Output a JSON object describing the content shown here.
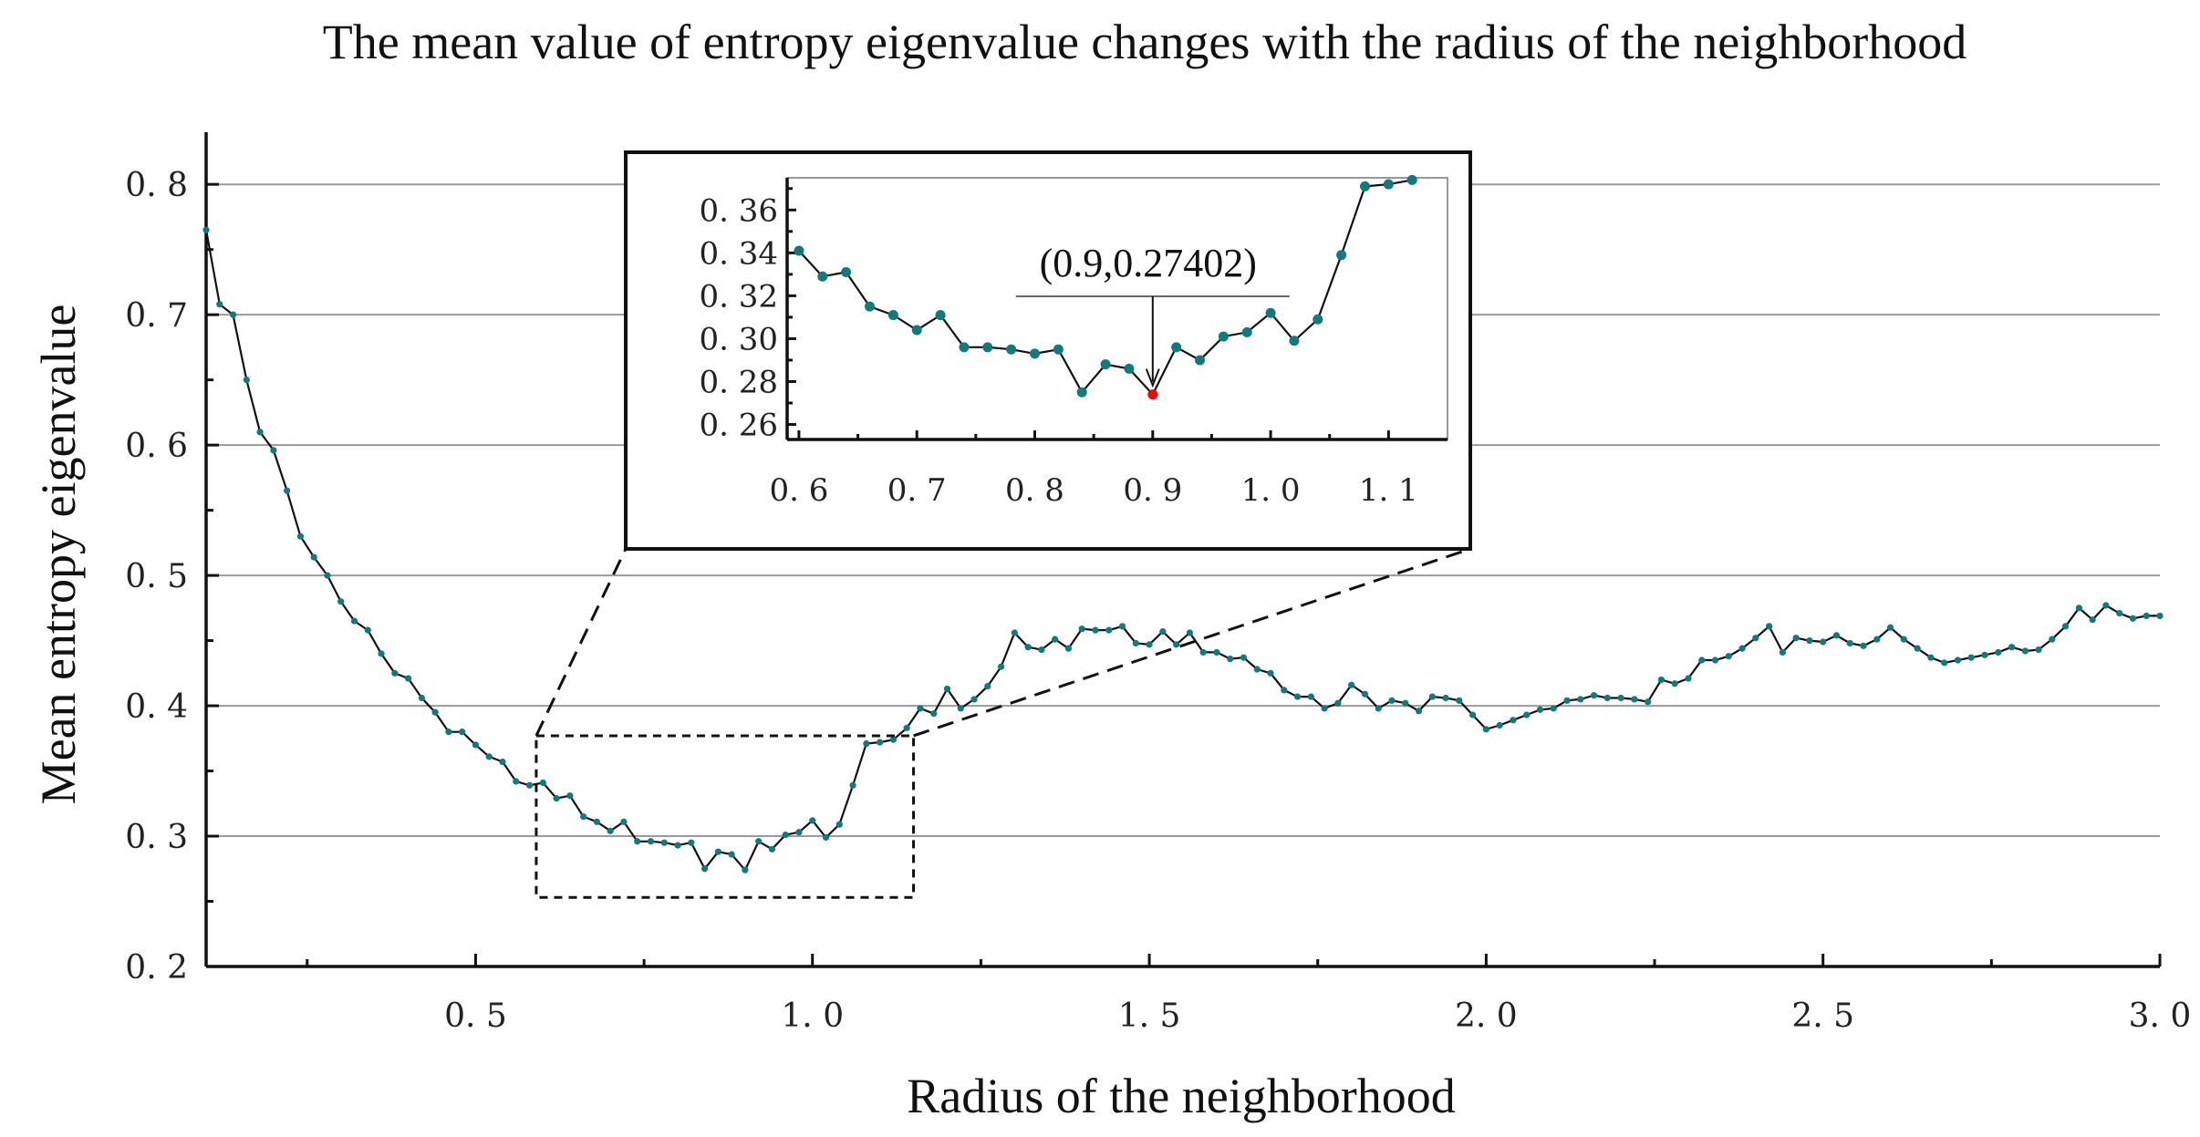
{
  "chart_data": {
    "type": "line",
    "title": "The mean value of entropy eigenvalue changes with the radius of the neighborhood",
    "xlabel": "Radius of the neighborhood",
    "ylabel": "Mean entropy eigenvalue",
    "xlim": [
      0.1,
      3.0
    ],
    "ylim": [
      0.2,
      0.84
    ],
    "xticks": [
      0.5,
      1.0,
      1.5,
      2.0,
      2.5,
      3.0
    ],
    "xtick_labels": [
      "0. 5",
      "1. 0",
      "1. 5",
      "2. 0",
      "2. 5",
      "3. 0"
    ],
    "yticks": [
      0.2,
      0.3,
      0.4,
      0.5,
      0.6,
      0.7,
      0.8
    ],
    "ytick_labels": [
      "0. 2",
      "0. 3",
      "0. 4",
      "0. 5",
      "0. 6",
      "0. 7",
      "0. 8"
    ],
    "grid": "horizontal",
    "marker_color": "#117a7a",
    "highlight_color": "#ff0000",
    "series": [
      {
        "name": "mean entropy eigenvalue",
        "x_start": 0.1,
        "x_step": 0.02,
        "values": [
          0.765,
          0.708,
          0.7,
          0.65,
          0.61,
          0.596,
          0.565,
          0.53,
          0.514,
          0.5,
          0.48,
          0.465,
          0.458,
          0.44,
          0.425,
          0.421,
          0.406,
          0.395,
          0.38,
          0.38,
          0.37,
          0.361,
          0.357,
          0.342,
          0.339,
          0.341,
          0.329,
          0.331,
          0.315,
          0.311,
          0.304,
          0.311,
          0.296,
          0.296,
          0.295,
          0.293,
          0.295,
          0.275,
          0.288,
          0.286,
          0.274,
          0.296,
          0.29,
          0.301,
          0.303,
          0.312,
          0.299,
          0.309,
          0.339,
          0.371,
          0.372,
          0.374,
          0.383,
          0.398,
          0.394,
          0.413,
          0.398,
          0.405,
          0.415,
          0.43,
          0.456,
          0.445,
          0.443,
          0.451,
          0.444,
          0.459,
          0.458,
          0.458,
          0.461,
          0.448,
          0.447,
          0.457,
          0.447,
          0.456,
          0.441,
          0.441,
          0.436,
          0.437,
          0.428,
          0.425,
          0.412,
          0.407,
          0.407,
          0.398,
          0.402,
          0.416,
          0.409,
          0.398,
          0.404,
          0.402,
          0.396,
          0.407,
          0.406,
          0.404,
          0.393,
          0.382,
          0.385,
          0.389,
          0.393,
          0.397,
          0.398,
          0.404,
          0.405,
          0.408,
          0.406,
          0.406,
          0.405,
          0.403,
          0.42,
          0.417,
          0.421,
          0.435,
          0.435,
          0.438,
          0.444,
          0.452,
          0.461,
          0.441,
          0.452,
          0.45,
          0.449,
          0.454,
          0.448,
          0.446,
          0.451,
          0.46,
          0.451,
          0.444,
          0.437,
          0.433,
          0.435,
          0.437,
          0.439,
          0.441,
          0.445,
          0.442,
          0.443,
          0.451,
          0.461,
          0.475,
          0.466,
          0.477,
          0.471,
          0.467,
          0.469,
          0.469
        ]
      }
    ],
    "inset": {
      "xlim": [
        0.59,
        1.15
      ],
      "ylim": [
        0.253,
        0.375
      ],
      "xticks": [
        0.6,
        0.7,
        0.8,
        0.9,
        1.0,
        1.1
      ],
      "xtick_labels": [
        "0. 6",
        "0. 7",
        "0. 8",
        "0. 9",
        "1. 0",
        "1. 1"
      ],
      "yticks": [
        0.26,
        0.28,
        0.3,
        0.32,
        0.34,
        0.36
      ],
      "ytick_labels": [
        "0. 26",
        "0. 28",
        "0. 30",
        "0. 32",
        "0. 34",
        "0. 36"
      ],
      "zoom_region": {
        "x": [
          0.59,
          1.15
        ],
        "y": [
          0.253,
          0.377
        ]
      },
      "annotation": {
        "text": "(0.9,0.27402)",
        "x": 0.9,
        "y": 0.27402
      }
    }
  }
}
